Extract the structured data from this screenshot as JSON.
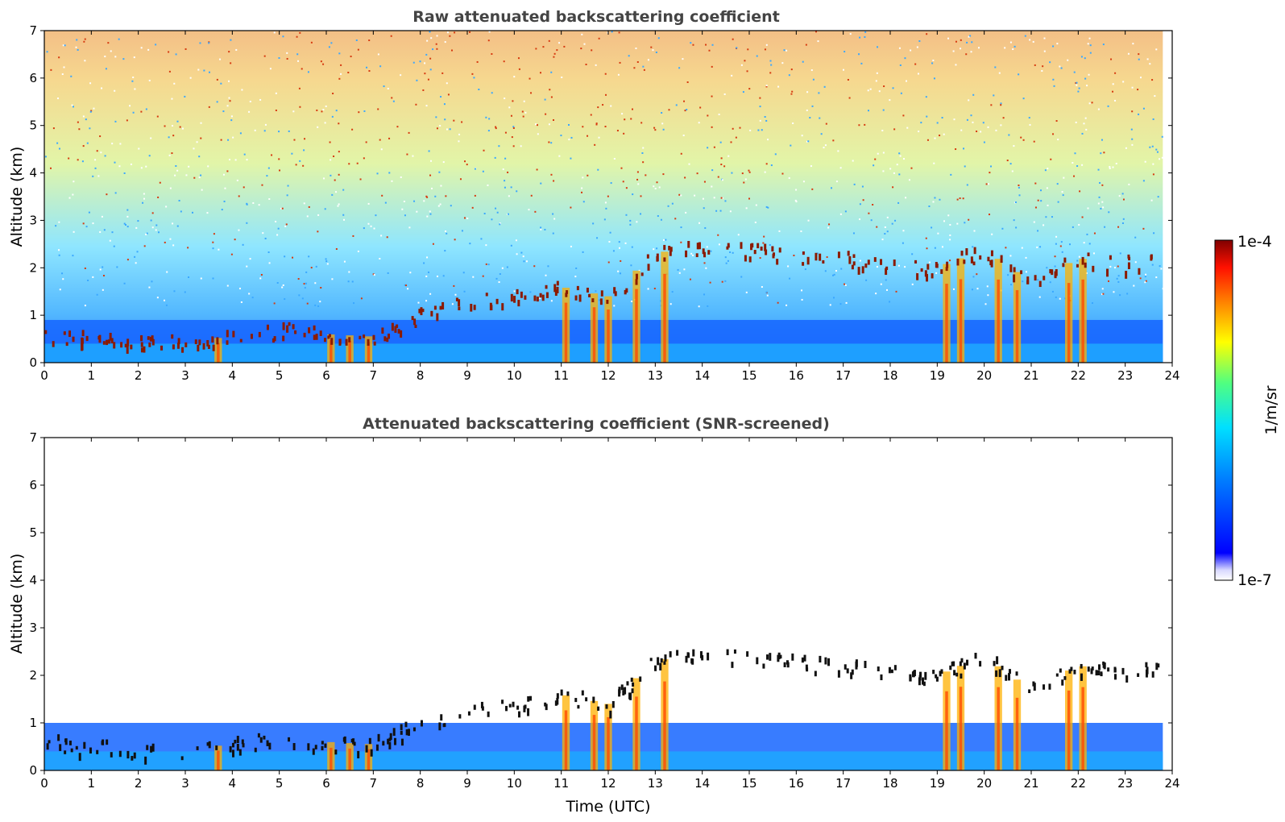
{
  "chart_data": [
    {
      "type": "heatmap",
      "title": "Raw attenuated backscattering coefficient",
      "xlabel": "",
      "ylabel": "Altitude (km)",
      "xlim": [
        0,
        24
      ],
      "ylim": [
        0,
        7
      ],
      "x_ticks": [
        "0",
        "1",
        "2",
        "3",
        "4",
        "5",
        "6",
        "7",
        "8",
        "9",
        "10",
        "11",
        "12",
        "13",
        "14",
        "15",
        "16",
        "17",
        "18",
        "19",
        "20",
        "21",
        "22",
        "23",
        "24"
      ],
      "y_ticks": [
        "0",
        "1",
        "2",
        "3",
        "4",
        "5",
        "6",
        "7"
      ],
      "colorbar": {
        "label": "1/m/sr",
        "min_label": "1e-7",
        "max_label": "1e-4",
        "scale": "log",
        "colormap": "jet"
      }
    },
    {
      "type": "heatmap",
      "title": "Attenuated backscattering coefficient (SNR-screened)",
      "xlabel": "Time (UTC)",
      "ylabel": "Altitude (km)",
      "xlim": [
        0,
        24
      ],
      "ylim": [
        0,
        7
      ],
      "x_ticks": [
        "0",
        "1",
        "2",
        "3",
        "4",
        "5",
        "6",
        "7",
        "8",
        "9",
        "10",
        "11",
        "12",
        "13",
        "14",
        "15",
        "16",
        "17",
        "18",
        "19",
        "20",
        "21",
        "22",
        "23",
        "24"
      ],
      "y_ticks": [
        "0",
        "1",
        "2",
        "3",
        "4",
        "5",
        "6",
        "7"
      ],
      "colorbar": {
        "label": "1/m/sr",
        "min_label": "1e-7",
        "max_label": "1e-4",
        "scale": "log",
        "colormap": "jet"
      }
    }
  ],
  "colors": {
    "cloud": "#8b1a00",
    "boundary_layer_low": "#1565ff",
    "background": "#ffffff",
    "title_text": "#444444"
  },
  "colorbar": {
    "label": "1/m/sr",
    "max_label": "1e-4",
    "min_label": "1e-7"
  }
}
